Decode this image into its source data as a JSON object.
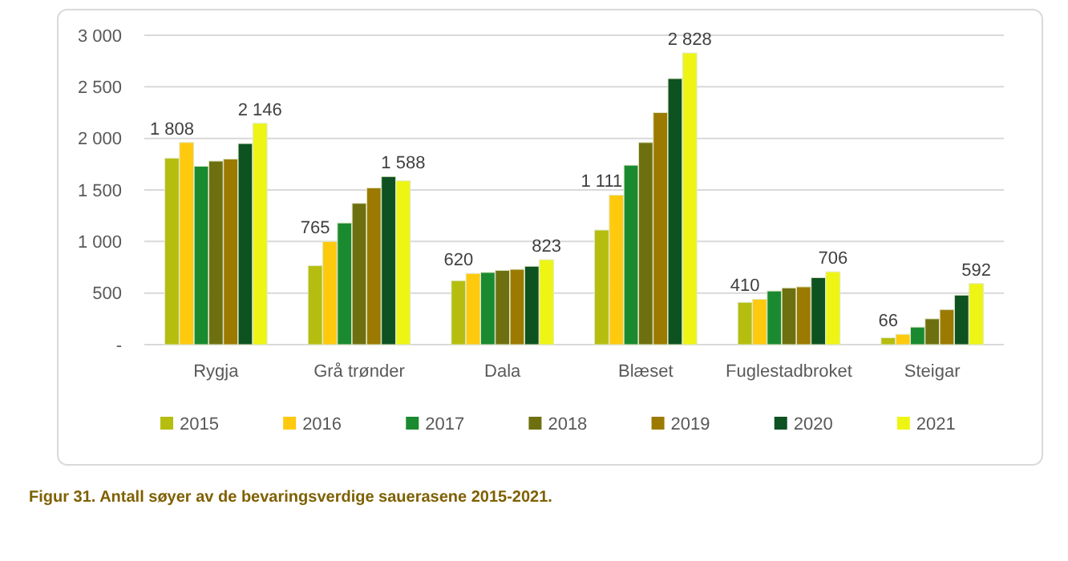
{
  "chart_data": {
    "type": "bar",
    "categories": [
      "Rygja",
      "Grå trønder",
      "Dala",
      "Blæset",
      "Fuglestadbroket",
      "Steigar"
    ],
    "series": [
      {
        "name": "2015",
        "color": "#b5bd0f",
        "values": [
          1808,
          765,
          620,
          1111,
          410,
          66
        ],
        "value_labels": [
          "1 808",
          "765",
          "620",
          "1 111",
          "410",
          "66"
        ]
      },
      {
        "name": "2016",
        "color": "#ffc90e",
        "values": [
          1960,
          1000,
          690,
          1450,
          440,
          100
        ]
      },
      {
        "name": "2017",
        "color": "#1a8a30",
        "values": [
          1730,
          1180,
          700,
          1740,
          520,
          170
        ]
      },
      {
        "name": "2018",
        "color": "#6e7010",
        "values": [
          1780,
          1370,
          720,
          1960,
          550,
          250
        ]
      },
      {
        "name": "2019",
        "color": "#9c7a00",
        "values": [
          1800,
          1520,
          730,
          2250,
          560,
          340
        ]
      },
      {
        "name": "2020",
        "color": "#0d5220",
        "values": [
          1950,
          1630,
          760,
          2580,
          650,
          480
        ]
      },
      {
        "name": "2021",
        "color": "#eef514",
        "values": [
          2146,
          1588,
          823,
          2828,
          706,
          592
        ],
        "value_labels": [
          "2 146",
          "1 588",
          "823",
          "2 828",
          "706",
          "592"
        ]
      }
    ],
    "ylim": [
      0,
      3000
    ],
    "yticks": [
      {
        "value": 0,
        "label": "-"
      },
      {
        "value": 500,
        "label": "500"
      },
      {
        "value": 1000,
        "label": "1 000"
      },
      {
        "value": 1500,
        "label": "1 500"
      },
      {
        "value": 2000,
        "label": "2 000"
      },
      {
        "value": 2500,
        "label": "2 500"
      },
      {
        "value": 3000,
        "label": "3 000"
      }
    ],
    "grid": "y",
    "legend": "bottom",
    "annotations": [
      "Figur 31.  Antall søyer av de bevaringsverdige sauerasene 2015-2021."
    ]
  }
}
